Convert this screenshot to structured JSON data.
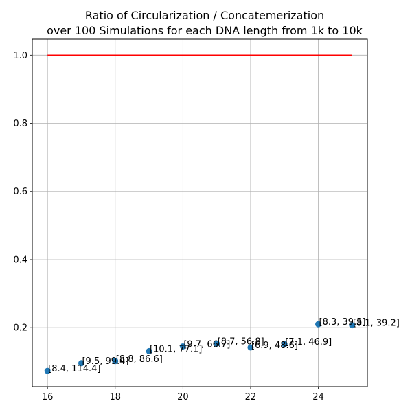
{
  "chart_data": {
    "type": "scatter",
    "title_lines": [
      "Ratio of Circularization / Concatemerization",
      "over 100 Simulations for each DNA length from 1k to 10k"
    ],
    "xlabel": "",
    "ylabel": "",
    "xlim": [
      15.55,
      25.45
    ],
    "ylim": [
      0.027,
      1.047
    ],
    "grid": true,
    "x_ticks": [
      16,
      18,
      20,
      22,
      24
    ],
    "x_tick_labels": [
      "16",
      "18",
      "20",
      "22",
      "24"
    ],
    "y_ticks": [
      0.2,
      0.4,
      0.6,
      0.8,
      1.0
    ],
    "y_tick_labels": [
      "0.2",
      "0.4",
      "0.6",
      "0.8",
      "1.0"
    ],
    "reference_line": {
      "x": [
        16,
        25
      ],
      "y": [
        1.0,
        1.0
      ],
      "color": "#ff0000"
    },
    "points": [
      {
        "x": 16,
        "y": 0.073,
        "label": "[8.4, 114.4]"
      },
      {
        "x": 17,
        "y": 0.096,
        "label": "[9.5, 99.4]"
      },
      {
        "x": 18,
        "y": 0.102,
        "label": "[8.8, 86.6]"
      },
      {
        "x": 19,
        "y": 0.131,
        "label": "[10.1, 77.1]"
      },
      {
        "x": 20,
        "y": 0.145,
        "label": "[9.7, 66.7]"
      },
      {
        "x": 21,
        "y": 0.153,
        "label": "[8.7, 56.8]"
      },
      {
        "x": 22,
        "y": 0.142,
        "label": "[6.9, 48.6]"
      },
      {
        "x": 23,
        "y": 0.152,
        "label": "[7.1, 46.9]"
      },
      {
        "x": 24,
        "y": 0.21,
        "label": "[8.3, 39.5]"
      },
      {
        "x": 25,
        "y": 0.207,
        "label": "[8.1, 39.2]"
      }
    ],
    "colors": {
      "points": "#1f77b4",
      "grid": "#b0b0b0",
      "axes": "#000000"
    }
  }
}
